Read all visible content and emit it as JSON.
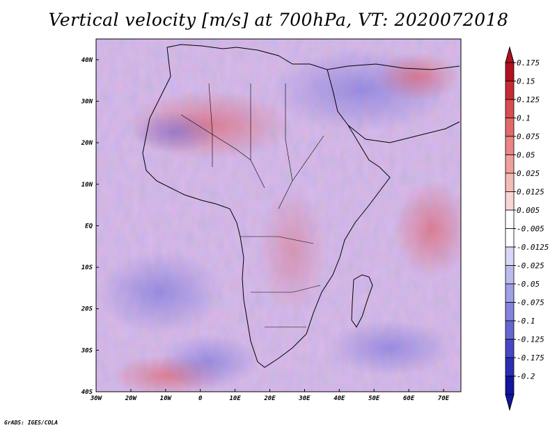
{
  "title": "Vertical velocity [m/s] at 700hPa, VT: 2020072018",
  "footer": "GrADS: IGES/COLA",
  "map": {
    "lon_range": [
      -30,
      75
    ],
    "lat_range": [
      -40,
      45
    ],
    "lat_ticks": [
      "40N",
      "30N",
      "20N",
      "10N",
      "EQ",
      "10S",
      "20S",
      "30S",
      "40S"
    ],
    "lon_ticks": [
      "30W",
      "20W",
      "10W",
      "0",
      "10E",
      "20E",
      "30E",
      "40E",
      "50E",
      "60E",
      "70E"
    ]
  },
  "colorbar": {
    "labels": [
      "0.175",
      "0.15",
      "0.125",
      "0.1",
      "0.075",
      "0.05",
      "0.025",
      "0.0125",
      "0.005",
      "-0.005",
      "-0.0125",
      "-0.025",
      "-0.05",
      "-0.075",
      "-0.1",
      "-0.125",
      "-0.175",
      "-0.2"
    ],
    "colors": [
      "#b01020",
      "#c82a35",
      "#d94d4f",
      "#e2696a",
      "#e98584",
      "#efa09d",
      "#f4bbb8",
      "#f8d6d3",
      "#ffffff",
      "#ffffff",
      "#d8d8f4",
      "#bcbcec",
      "#a0a0e4",
      "#8484dc",
      "#6666d0",
      "#4848c4",
      "#2c2cb4",
      "#1414a0"
    ]
  }
}
